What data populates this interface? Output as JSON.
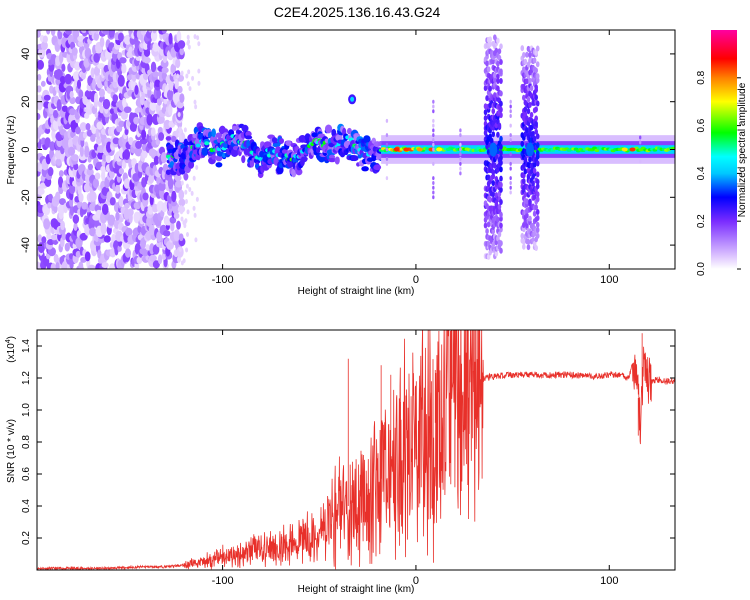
{
  "title": "C2E4.2025.136.16.43.G24",
  "chart_data": [
    {
      "type": "heatmap",
      "xlabel": "Height of straight line (km)",
      "ylabel": "Frequency (Hz)",
      "xlim": [
        -196,
        134
      ],
      "ylim": [
        -50,
        50
      ],
      "xticks": [
        -100,
        0,
        100
      ],
      "xtick_labels": [
        "-100",
        "0",
        "100"
      ],
      "yticks": [
        -40,
        -20,
        0,
        20,
        40
      ],
      "ytick_labels": [
        "-40",
        "-20",
        "0",
        "20",
        "40"
      ],
      "colorbar": {
        "label": "Normalized spectral amplitude",
        "range": [
          0,
          1
        ],
        "ticks": [
          0,
          0.2,
          0.4,
          0.6,
          0.8
        ],
        "tick_labels": [
          "0.0",
          "0.2",
          "0.4",
          "0.6",
          "0.8"
        ],
        "colormap": [
          "#ffffff",
          "#e0c8ff",
          "#7a2cff",
          "#0000ff",
          "#00ffff",
          "#00ff00",
          "#ffff00",
          "#ff8000",
          "#ff0000",
          "#ff00a0"
        ]
      },
      "features": [
        {
          "name": "noise region",
          "x_range": [
            -196,
            -122
          ],
          "freq_range": [
            -50,
            50
          ],
          "amplitude": 0.1
        },
        {
          "name": "wandering signal",
          "x_range": [
            -128,
            -18
          ],
          "freq_range": [
            -10,
            10
          ],
          "amplitude": 0.35
        },
        {
          "name": "stable carrier",
          "x_range": [
            -18,
            134
          ],
          "center_freq": 0,
          "amplitude": 0.5
        },
        {
          "name": "burst 1",
          "x_center": 40,
          "freq_range": [
            -45,
            45
          ]
        },
        {
          "name": "burst 2",
          "x_center": 59,
          "freq_range": [
            -42,
            42
          ]
        },
        {
          "name": "spur",
          "x_center": -33,
          "freq": 21
        }
      ]
    },
    {
      "type": "line",
      "xlabel": "Height of straight line (km)",
      "ylabel": "SNR (10 * v/v)",
      "multiplier_label": "(x10",
      "multiplier_exp": "4",
      "multiplier_close": ")",
      "xlim": [
        -196,
        134
      ],
      "ylim": [
        0,
        1.5
      ],
      "xticks": [
        -100,
        0,
        100
      ],
      "xtick_labels": [
        "-100",
        "0",
        "100"
      ],
      "yticks": [
        0.2,
        0.4,
        0.6,
        0.8,
        1.0,
        1.2,
        1.4
      ],
      "ytick_labels": [
        "0.2",
        "0.4",
        "0.6",
        "0.8",
        "1.0",
        "1.2",
        "1.4"
      ],
      "color": "#e8302a",
      "series": [
        {
          "x": [
            -196,
            -180,
            -160,
            -140,
            -130,
            -120,
            -110,
            -100,
            -90,
            -80,
            -70,
            -60,
            -50,
            -45,
            -40,
            -35,
            -30,
            -25,
            -20,
            -15,
            -10,
            -5,
            0,
            5,
            10,
            15,
            20,
            25,
            30,
            35,
            40,
            50,
            60,
            70,
            80,
            90,
            100,
            105,
            110,
            112,
            114,
            116,
            118,
            120,
            125,
            130,
            134
          ],
          "y": [
            0.01,
            0.01,
            0.01,
            0.02,
            0.02,
            0.03,
            0.05,
            0.08,
            0.1,
            0.13,
            0.15,
            0.18,
            0.22,
            0.3,
            0.38,
            0.4,
            0.42,
            0.45,
            0.55,
            0.6,
            0.7,
            0.72,
            0.75,
            0.85,
            0.92,
            1.0,
            1.1,
            1.15,
            1.18,
            1.2,
            1.21,
            1.22,
            1.22,
            1.22,
            1.22,
            1.21,
            1.22,
            1.22,
            1.2,
            1.28,
            1.25,
            0.9,
            1.33,
            1.18,
            1.19,
            1.18,
            1.18
          ]
        }
      ]
    }
  ]
}
